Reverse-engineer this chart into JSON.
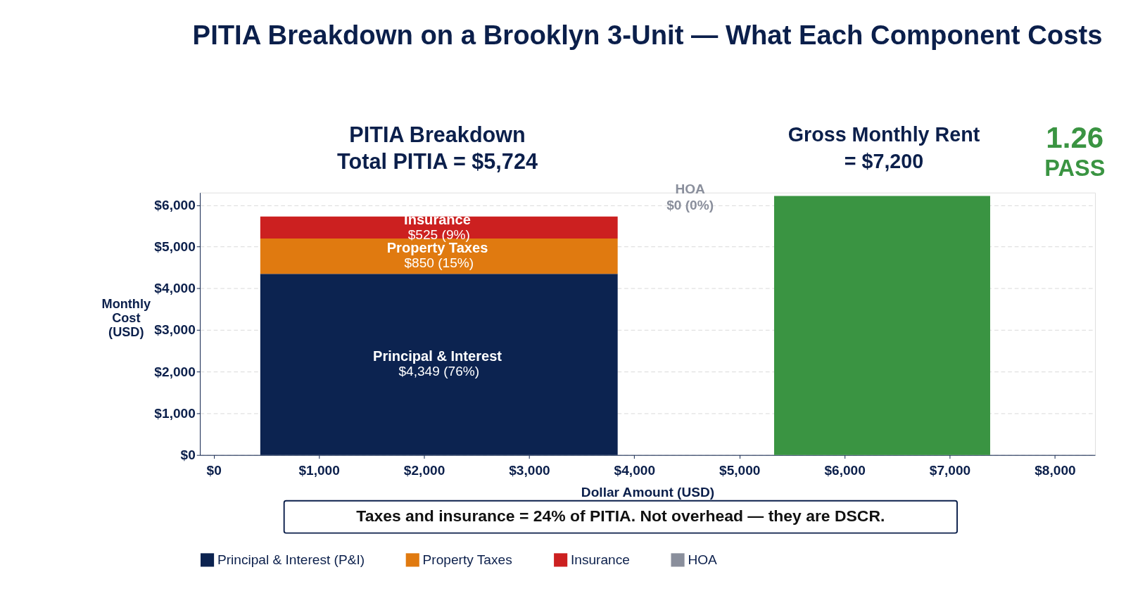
{
  "chart_data": {
    "type": "bar",
    "stacked": true,
    "title": "PITIA Breakdown on a Brooklyn 3-Unit — What Each Component Costs",
    "xlabel": "Dollar Amount (USD)",
    "ylabel": "Monthly Cost (USD)",
    "x": [
      2142,
      6357
    ],
    "series": [
      {
        "name": "Principal & Interest (P&I)",
        "color": "#0c2350",
        "values": [
          4349,
          null
        ],
        "value_labels": [
          "$4,349 (76%)",
          null
        ]
      },
      {
        "name": "Property Taxes",
        "color": "#e07a10",
        "values": [
          850,
          null
        ],
        "value_labels": [
          "$850 (15%)",
          null
        ]
      },
      {
        "name": "Insurance",
        "color": "#cc2020",
        "values": [
          525,
          null
        ],
        "value_labels": [
          "$525 (9%)",
          null
        ]
      },
      {
        "name": "HOA",
        "color": "#8a8f9c",
        "values": [
          0,
          null
        ]
      },
      {
        "color": "#3a9442",
        "values": [
          null,
          6220
        ]
      }
    ],
    "annotations": [
      "PITIA Breakdown",
      "Total PITIA = $5,724",
      "Gross Monthly Rent",
      "= $7,200",
      "1.26",
      "PASS",
      "Taxes and insurance = 24% of PITIA. Not overhead — they are DSCR.",
      "Principal & Interest",
      "Property Taxes",
      "Insurance",
      "HOA",
      "$0 (0%)"
    ],
    "xlim": [
      -100,
      8350
    ],
    "ylim": [
      0,
      6300
    ],
    "xticks": [
      {
        "value": 0,
        "label": "$0"
      },
      {
        "value": 1000,
        "label": "$1,000"
      },
      {
        "value": 2000,
        "label": "$2,000"
      },
      {
        "value": 3000,
        "label": "$3,000"
      },
      {
        "value": 4000,
        "label": "$4,000"
      },
      {
        "value": 5000,
        "label": "$5,000"
      },
      {
        "value": 6000,
        "label": "$6,000"
      },
      {
        "value": 7000,
        "label": "$7,000"
      },
      {
        "value": 8000,
        "label": "$8,000"
      }
    ],
    "yticks": [
      {
        "value": 0,
        "label": "$0"
      },
      {
        "value": 1000,
        "label": "$1,000"
      },
      {
        "value": 2000,
        "label": "$2,000"
      },
      {
        "value": 3000,
        "label": "$3,000"
      },
      {
        "value": 4000,
        "label": "$4,000"
      },
      {
        "value": 5000,
        "label": "$5,000"
      },
      {
        "value": 6000,
        "label": "$6,000"
      }
    ],
    "grid": "y",
    "legend": "bottom"
  }
}
